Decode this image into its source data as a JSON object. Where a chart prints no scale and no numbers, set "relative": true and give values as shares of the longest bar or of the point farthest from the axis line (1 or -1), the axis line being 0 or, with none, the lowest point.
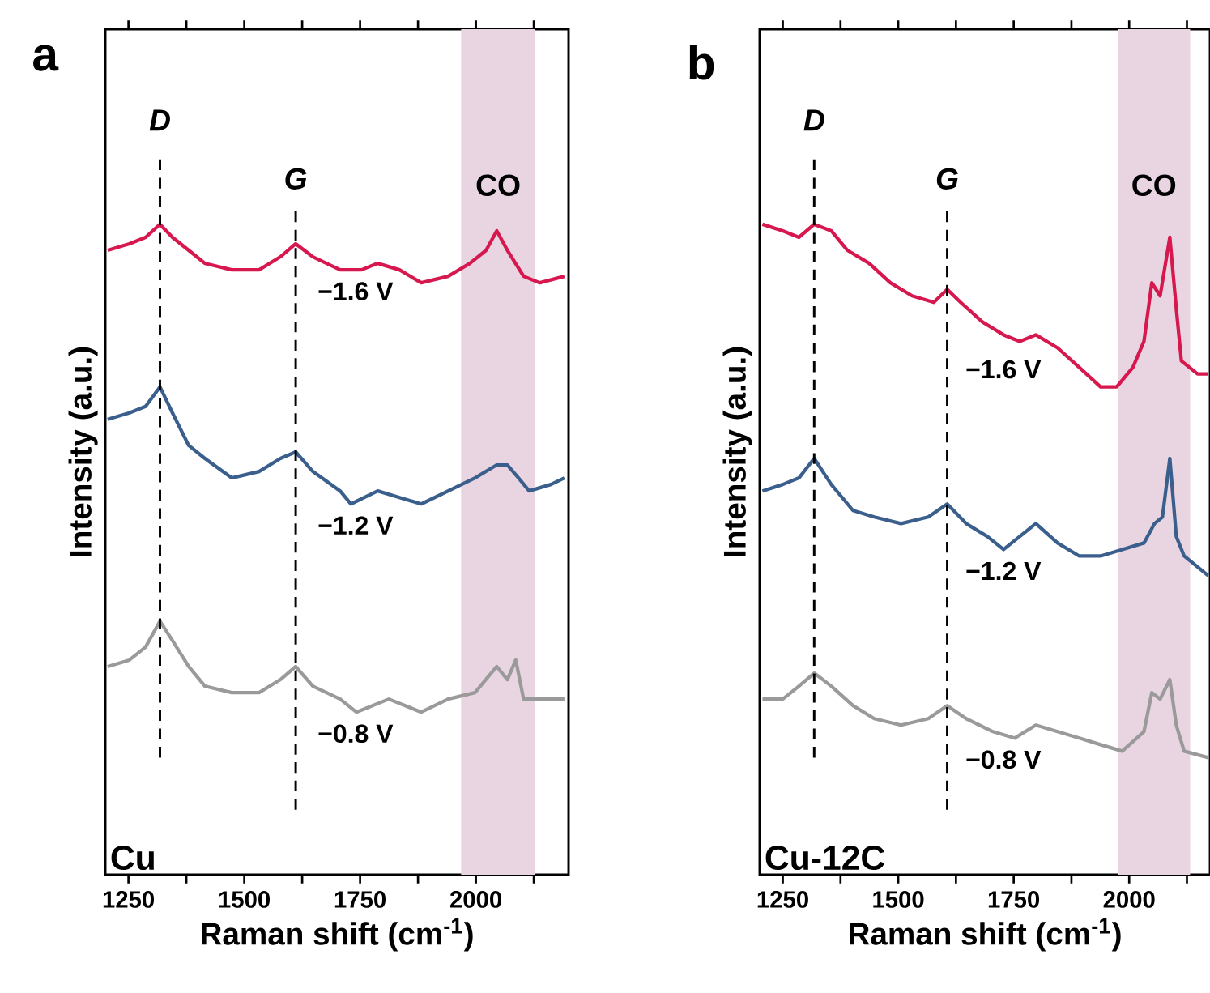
{
  "chart_data": [
    {
      "type": "line",
      "title": "a",
      "relative": true,
      "xlabel": "Raman shift (cm$^{-1}$)",
      "ylabel": "Intensity (a.u.)",
      "xlim": [
        1200,
        2200
      ],
      "xticks": [
        1250,
        {
          "value": 1375,
          "label": null
        },
        1500,
        {
          "value": 1625,
          "label": null
        },
        1750,
        {
          "value": 1875,
          "label": null
        },
        2000,
        {
          "value": 2125,
          "label": null
        }
      ],
      "annotations": [
        "Cu"
      ],
      "ref_lines": [
        {
          "axis": "x",
          "value": 1318,
          "label": "D",
          "line_style": "dashed"
        },
        {
          "axis": "x",
          "value": 1611,
          "label": "G",
          "line_style": "dashed"
        }
      ],
      "bands": [
        {
          "axis": "x",
          "from": 1968,
          "to": 2128,
          "label": "CO",
          "color": "#e8d5e1"
        }
      ],
      "series": [
        {
          "name": "−1.6 V",
          "color": "#d6184f",
          "x": [
            1205,
            1252,
            1287,
            1318,
            1345,
            1380,
            1415,
            1473,
            1532,
            1578,
            1611,
            1648,
            1707,
            1753,
            1788,
            1835,
            1882,
            1940,
            1987,
            2022,
            2045,
            2068,
            2103,
            2138,
            2191
          ],
          "values": [
            0.96,
            0.97,
            0.98,
            1.0,
            0.98,
            0.96,
            0.94,
            0.93,
            0.93,
            0.95,
            0.97,
            0.95,
            0.93,
            0.93,
            0.94,
            0.93,
            0.91,
            0.92,
            0.94,
            0.96,
            0.99,
            0.96,
            0.92,
            0.91,
            0.92
          ]
        },
        {
          "name": "−1.2 V",
          "color": "#3a5f8c",
          "x": [
            1205,
            1252,
            1287,
            1318,
            1345,
            1380,
            1415,
            1473,
            1532,
            1578,
            1611,
            1648,
            1707,
            1730,
            1788,
            1835,
            1882,
            1940,
            1998,
            2045,
            2068,
            2092,
            2115,
            2162,
            2191
          ],
          "values": [
            0.7,
            0.71,
            0.72,
            0.75,
            0.71,
            0.66,
            0.64,
            0.61,
            0.62,
            0.64,
            0.65,
            0.62,
            0.59,
            0.57,
            0.59,
            0.58,
            0.57,
            0.59,
            0.61,
            0.63,
            0.63,
            0.61,
            0.59,
            0.6,
            0.61
          ]
        },
        {
          "name": "−0.8 V",
          "color": "#9a9a9a",
          "x": [
            1205,
            1252,
            1287,
            1318,
            1345,
            1380,
            1415,
            1473,
            1532,
            1578,
            1611,
            1648,
            1707,
            1742,
            1812,
            1882,
            1940,
            1998,
            2045,
            2068,
            2086,
            2103,
            2138,
            2191
          ],
          "values": [
            0.32,
            0.33,
            0.35,
            0.39,
            0.36,
            0.32,
            0.29,
            0.28,
            0.28,
            0.3,
            0.32,
            0.29,
            0.27,
            0.25,
            0.27,
            0.25,
            0.27,
            0.28,
            0.32,
            0.3,
            0.33,
            0.27,
            0.27,
            0.27
          ]
        }
      ]
    },
    {
      "type": "line",
      "title": "b",
      "relative": true,
      "xlabel": "Raman shift (cm$^{-1}$)",
      "ylabel": "Intensity (a.u.)",
      "xlim": [
        1200,
        2175
      ],
      "xticks": [
        1250,
        {
          "value": 1375,
          "label": null
        },
        1500,
        {
          "value": 1625,
          "label": null
        },
        1750,
        {
          "value": 1875,
          "label": null
        },
        2000,
        {
          "value": 2125,
          "label": null
        }
      ],
      "annotations": [
        "Cu-12C"
      ],
      "ref_lines": [
        {
          "axis": "x",
          "value": 1318,
          "label": "D",
          "line_style": "dashed"
        },
        {
          "axis": "x",
          "value": 1606,
          "label": "G",
          "line_style": "dashed"
        }
      ],
      "bands": [
        {
          "axis": "x",
          "from": 1975,
          "to": 2132,
          "label": "CO",
          "color": "#e8d5e1"
        }
      ],
      "series": [
        {
          "name": "−1.6 V",
          "color": "#d6184f",
          "x": [
            1206,
            1250,
            1285,
            1318,
            1355,
            1390,
            1437,
            1483,
            1530,
            1577,
            1606,
            1635,
            1682,
            1728,
            1763,
            1798,
            1845,
            1892,
            1938,
            1973,
            2008,
            2032,
            2049,
            2067,
            2088,
            2102,
            2113,
            2148,
            2171
          ],
          "values": [
            1.0,
            0.99,
            0.98,
            1.0,
            0.99,
            0.96,
            0.94,
            0.91,
            0.89,
            0.88,
            0.9,
            0.88,
            0.85,
            0.83,
            0.82,
            0.83,
            0.81,
            0.78,
            0.75,
            0.75,
            0.78,
            0.82,
            0.91,
            0.89,
            0.98,
            0.87,
            0.79,
            0.77,
            0.77
          ]
        },
        {
          "name": "−1.2 V",
          "color": "#3a5f8c",
          "x": [
            1206,
            1250,
            1285,
            1318,
            1355,
            1402,
            1448,
            1506,
            1565,
            1606,
            1647,
            1693,
            1728,
            1763,
            1798,
            1845,
            1892,
            1938,
            1985,
            2032,
            2055,
            2072,
            2088,
            2102,
            2119,
            2171
          ],
          "values": [
            0.59,
            0.6,
            0.61,
            0.64,
            0.6,
            0.56,
            0.55,
            0.54,
            0.55,
            0.57,
            0.54,
            0.52,
            0.5,
            0.52,
            0.54,
            0.51,
            0.49,
            0.49,
            0.5,
            0.51,
            0.54,
            0.55,
            0.64,
            0.52,
            0.49,
            0.46
          ]
        },
        {
          "name": "−0.8 V",
          "color": "#9a9a9a",
          "x": [
            1206,
            1250,
            1285,
            1318,
            1355,
            1402,
            1448,
            1506,
            1565,
            1606,
            1647,
            1705,
            1752,
            1798,
            1845,
            1892,
            1938,
            1985,
            2032,
            2049,
            2067,
            2088,
            2102,
            2119,
            2171
          ],
          "values": [
            0.27,
            0.27,
            0.29,
            0.31,
            0.29,
            0.26,
            0.24,
            0.23,
            0.24,
            0.26,
            0.24,
            0.22,
            0.21,
            0.23,
            0.22,
            0.21,
            0.2,
            0.19,
            0.22,
            0.28,
            0.27,
            0.3,
            0.23,
            0.19,
            0.18
          ]
        }
      ]
    }
  ]
}
